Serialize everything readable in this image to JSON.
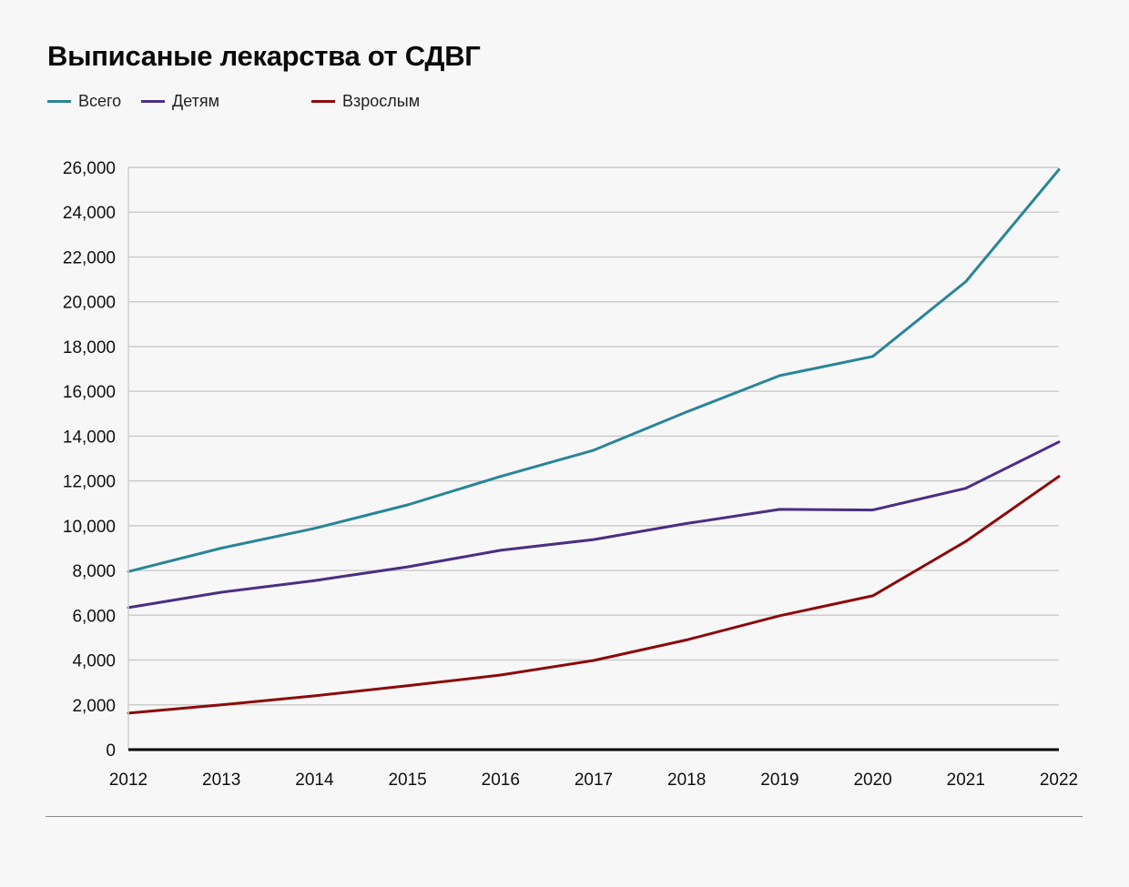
{
  "title": "Выписаные лекарства от СДВГ",
  "chart_data": {
    "type": "line",
    "title": "Выписаные лекарства от СДВГ",
    "xlabel": "",
    "ylabel": "",
    "x": [
      "2012",
      "2013",
      "2014",
      "2015",
      "2016",
      "2017",
      "2018",
      "2019",
      "2020",
      "2021",
      "2022"
    ],
    "series": [
      {
        "name": "Всего",
        "color": "#2a8597",
        "values": [
          7950,
          9000,
          9880,
          10930,
          12200,
          13370,
          15080,
          16700,
          17560,
          20900,
          25900
        ]
      },
      {
        "name": "Детям",
        "color": "#4b2e83",
        "values": [
          6340,
          7030,
          7550,
          8160,
          8900,
          9380,
          10100,
          10730,
          10700,
          11670,
          13740
        ]
      },
      {
        "name": "Взрослым",
        "color": "#8b0a0a",
        "values": [
          1630,
          2000,
          2400,
          2850,
          3330,
          3980,
          4900,
          5980,
          6870,
          9300,
          12200
        ]
      }
    ],
    "ylim": [
      0,
      26000
    ],
    "yticks": [
      0,
      2000,
      4000,
      6000,
      8000,
      10000,
      12000,
      14000,
      16000,
      18000,
      20000,
      22000,
      24000,
      26000
    ],
    "ytick_labels": [
      "0",
      "2,000",
      "4,000",
      "6,000",
      "8,000",
      "10,000",
      "12,000",
      "14,000",
      "16,000",
      "18,000",
      "20,000",
      "22,000",
      "24,000",
      "26,000"
    ],
    "grid": true,
    "legend_position": "top-left"
  }
}
